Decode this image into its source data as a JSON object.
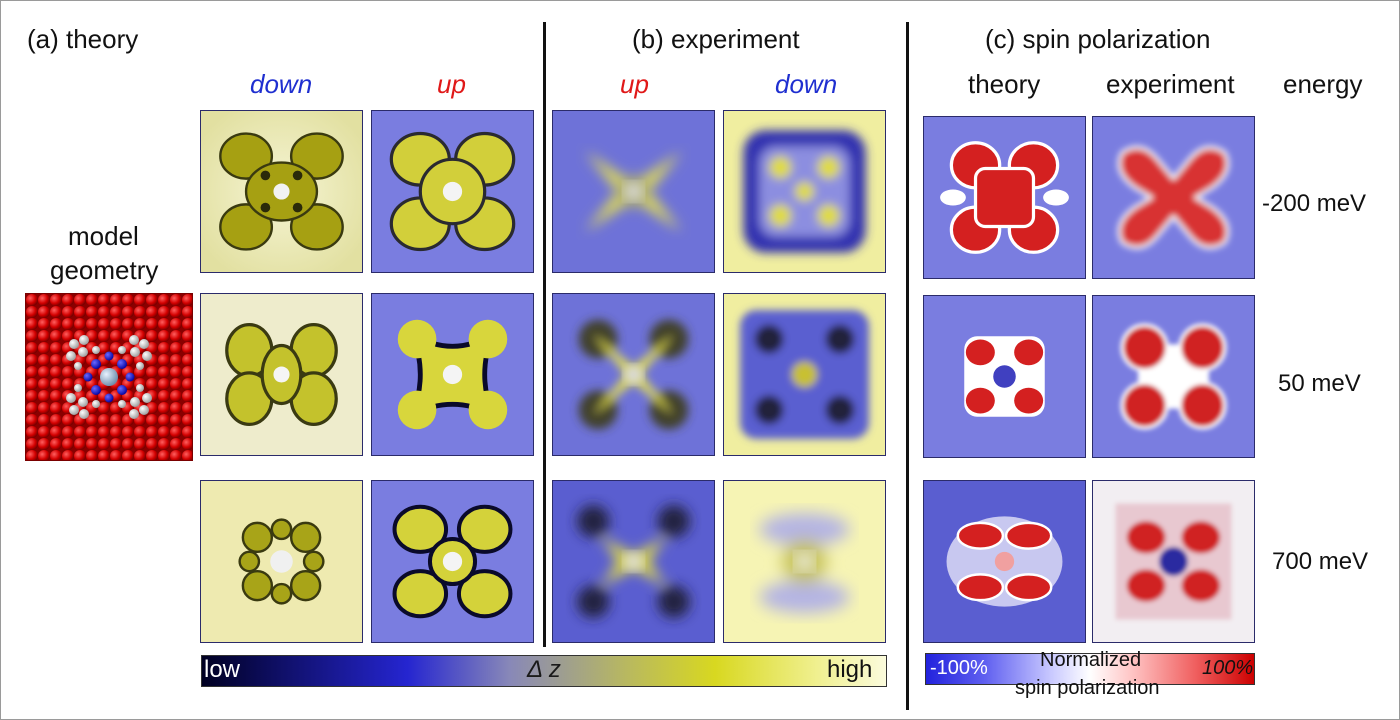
{
  "panels": {
    "theory": "(a) theory",
    "experiment": "(b) experiment",
    "spin_polarization": "(c) spin polarization"
  },
  "spin_labels": {
    "a_down": "down",
    "a_up": "up",
    "b_up": "up",
    "b_down": "down"
  },
  "spin_colors": {
    "down": "#1f2fd0",
    "up": "#e01818"
  },
  "c_columns": {
    "theory": "theory",
    "experiment": "experiment",
    "energy": "energy"
  },
  "energies": [
    "-200 meV",
    "50 meV",
    "700 meV"
  ],
  "model": {
    "line1": "model",
    "line2": "geometry"
  },
  "colorbar_dz": {
    "low": "low",
    "label": "Δ z",
    "high": "high"
  },
  "colorbar_spin": {
    "min": "-100%",
    "label_line1": "Normalized",
    "label_line2": "spin polarization",
    "max": "100%"
  }
}
